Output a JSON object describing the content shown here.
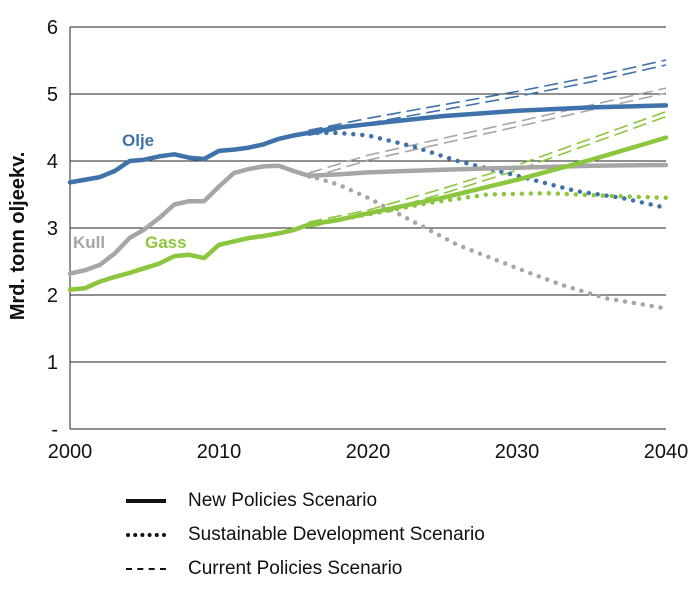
{
  "chart_data": {
    "type": "line",
    "title": "",
    "xlabel": "",
    "ylabel": "Mrd. tonn oljeekv.",
    "xlim": [
      2000,
      2040
    ],
    "ylim": [
      0,
      6
    ],
    "x_ticks": [
      "2000",
      "2010",
      "2020",
      "2030",
      "2040"
    ],
    "y_ticks": [
      "-",
      "1",
      "2",
      "3",
      "4",
      "5",
      "6"
    ],
    "colors": {
      "Olje": "#3f72aa",
      "Kull": "#a6a6a6",
      "Gass": "#8cc63f"
    },
    "series": [
      {
        "name": "Olje",
        "scenario": "History + New Policies Scenario",
        "points": [
          [
            2000,
            3.68
          ],
          [
            2002,
            3.76
          ],
          [
            2003,
            3.85
          ],
          [
            2004,
            4.0
          ],
          [
            2005,
            4.02
          ],
          [
            2006,
            4.07
          ],
          [
            2007,
            4.1
          ],
          [
            2008,
            4.05
          ],
          [
            2009,
            4.03
          ],
          [
            2010,
            4.15
          ],
          [
            2011,
            4.17
          ],
          [
            2012,
            4.2
          ],
          [
            2013,
            4.25
          ],
          [
            2014,
            4.33
          ],
          [
            2015,
            4.38
          ],
          [
            2016,
            4.42
          ],
          [
            2018,
            4.5
          ],
          [
            2020,
            4.55
          ],
          [
            2025,
            4.67
          ],
          [
            2030,
            4.75
          ],
          [
            2035,
            4.8
          ],
          [
            2040,
            4.83
          ]
        ]
      },
      {
        "name": "Olje",
        "scenario": "Sustainable Development Scenario",
        "points": [
          [
            2016,
            4.42
          ],
          [
            2018,
            4.42
          ],
          [
            2020,
            4.38
          ],
          [
            2023,
            4.22
          ],
          [
            2026,
            4.0
          ],
          [
            2030,
            3.78
          ],
          [
            2034,
            3.55
          ],
          [
            2037,
            3.45
          ],
          [
            2040,
            3.3
          ]
        ]
      },
      {
        "name": "Olje",
        "scenario": "Current Policies Scenario",
        "points": [
          [
            2016,
            4.42
          ],
          [
            2020,
            4.6
          ],
          [
            2025,
            4.8
          ],
          [
            2030,
            5.0
          ],
          [
            2035,
            5.22
          ],
          [
            2040,
            5.47
          ]
        ]
      },
      {
        "name": "Kull",
        "scenario": "History + New Policies Scenario",
        "points": [
          [
            2000,
            2.32
          ],
          [
            2001,
            2.37
          ],
          [
            2002,
            2.45
          ],
          [
            2003,
            2.62
          ],
          [
            2004,
            2.85
          ],
          [
            2005,
            2.98
          ],
          [
            2006,
            3.15
          ],
          [
            2007,
            3.35
          ],
          [
            2008,
            3.4
          ],
          [
            2009,
            3.4
          ],
          [
            2010,
            3.62
          ],
          [
            2011,
            3.82
          ],
          [
            2012,
            3.88
          ],
          [
            2013,
            3.92
          ],
          [
            2014,
            3.93
          ],
          [
            2015,
            3.85
          ],
          [
            2016,
            3.78
          ],
          [
            2018,
            3.8
          ],
          [
            2020,
            3.83
          ],
          [
            2025,
            3.87
          ],
          [
            2030,
            3.9
          ],
          [
            2035,
            3.93
          ],
          [
            2040,
            3.94
          ]
        ]
      },
      {
        "name": "Kull",
        "scenario": "Sustainable Development Scenario",
        "points": [
          [
            2016,
            3.78
          ],
          [
            2018,
            3.65
          ],
          [
            2020,
            3.45
          ],
          [
            2023,
            3.1
          ],
          [
            2026,
            2.75
          ],
          [
            2030,
            2.4
          ],
          [
            2033,
            2.15
          ],
          [
            2036,
            1.95
          ],
          [
            2040,
            1.8
          ]
        ]
      },
      {
        "name": "Kull",
        "scenario": "Current Policies Scenario",
        "points": [
          [
            2016,
            3.78
          ],
          [
            2020,
            4.05
          ],
          [
            2025,
            4.3
          ],
          [
            2030,
            4.55
          ],
          [
            2035,
            4.8
          ],
          [
            2040,
            5.05
          ]
        ]
      },
      {
        "name": "Gass",
        "scenario": "History + New Policies Scenario",
        "points": [
          [
            2000,
            2.08
          ],
          [
            2001,
            2.1
          ],
          [
            2002,
            2.2
          ],
          [
            2003,
            2.27
          ],
          [
            2004,
            2.33
          ],
          [
            2005,
            2.4
          ],
          [
            2006,
            2.47
          ],
          [
            2007,
            2.58
          ],
          [
            2008,
            2.6
          ],
          [
            2009,
            2.55
          ],
          [
            2010,
            2.75
          ],
          [
            2011,
            2.8
          ],
          [
            2012,
            2.85
          ],
          [
            2013,
            2.88
          ],
          [
            2014,
            2.92
          ],
          [
            2015,
            2.97
          ],
          [
            2016,
            3.05
          ],
          [
            2018,
            3.12
          ],
          [
            2020,
            3.22
          ],
          [
            2025,
            3.45
          ],
          [
            2030,
            3.72
          ],
          [
            2035,
            4.02
          ],
          [
            2040,
            4.35
          ]
        ]
      },
      {
        "name": "Gass",
        "scenario": "Sustainable Development Scenario",
        "points": [
          [
            2016,
            3.05
          ],
          [
            2020,
            3.2
          ],
          [
            2024,
            3.37
          ],
          [
            2028,
            3.5
          ],
          [
            2032,
            3.52
          ],
          [
            2036,
            3.48
          ],
          [
            2040,
            3.45
          ]
        ]
      },
      {
        "name": "Gass",
        "scenario": "Current Policies Scenario",
        "points": [
          [
            2016,
            3.05
          ],
          [
            2020,
            3.23
          ],
          [
            2025,
            3.55
          ],
          [
            2030,
            3.9
          ],
          [
            2035,
            4.3
          ],
          [
            2040,
            4.7
          ]
        ]
      }
    ],
    "annotations": [
      "Olje",
      "Kull",
      "Gass"
    ],
    "legend": [
      {
        "label": "New Policies Scenario",
        "style": "solid"
      },
      {
        "label": "Sustainable Development Scenario",
        "style": "dotted"
      },
      {
        "label": "Current Policies Scenario",
        "style": "dashed"
      }
    ]
  }
}
